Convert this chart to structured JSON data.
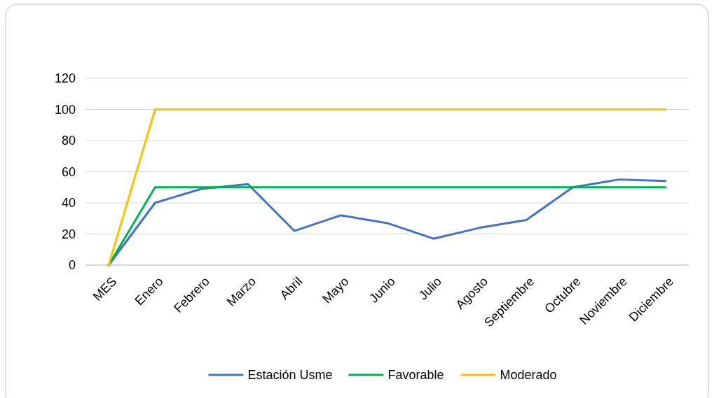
{
  "chart_data": {
    "type": "line",
    "categories": [
      "MES",
      "Enero",
      "Febrero",
      "Marzo",
      "Abril",
      "Mayo",
      "Junio",
      "Julio",
      "Agosto",
      "Septiembre",
      "Octubre",
      "Noviembre",
      "Diciembre"
    ],
    "series": [
      {
        "name": "Estación Usme",
        "color": "#4472c4",
        "values": [
          0,
          40,
          49,
          52,
          22,
          32,
          27,
          17,
          24,
          29,
          50,
          55,
          54
        ]
      },
      {
        "name": "Favorable",
        "color": "#00b050",
        "values": [
          0,
          50,
          50,
          50,
          50,
          50,
          50,
          50,
          50,
          50,
          50,
          50,
          50
        ]
      },
      {
        "name": "Moderado",
        "color": "#ffc000",
        "values": [
          0,
          100,
          100,
          100,
          100,
          100,
          100,
          100,
          100,
          100,
          100,
          100,
          100
        ]
      }
    ],
    "ylim": [
      0,
      120
    ],
    "yticks": [
      0,
      20,
      40,
      60,
      80,
      100,
      120
    ],
    "grid": "y",
    "legend": "bottom",
    "marker": "none",
    "line_style": "solid"
  }
}
